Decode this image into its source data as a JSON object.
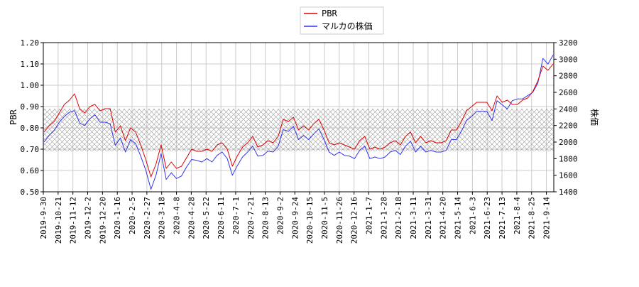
{
  "chart_data": {
    "type": "line",
    "title": "",
    "xlabel": "",
    "ylabel": "PBR",
    "y2label": "株価",
    "ylim": [
      0.5,
      1.2
    ],
    "y2lim": [
      1400,
      3200
    ],
    "yticks": [
      "0.50",
      "0.60",
      "0.70",
      "0.80",
      "0.90",
      "1.00",
      "1.10",
      "1.20"
    ],
    "y2ticks": [
      "1400",
      "1600",
      "1800",
      "2000",
      "2200",
      "2400",
      "2600",
      "2800",
      "3000",
      "3200"
    ],
    "xticks": [
      "2019-9-30",
      "2019-10-21",
      "2019-11-12",
      "2019-12-2",
      "2019-12-20",
      "2020-1-16",
      "2020-2-5",
      "2020-2-27",
      "2020-3-18",
      "2020-4-8",
      "2020-4-28",
      "2020-5-22",
      "2020-6-11",
      "2020-7-1",
      "2020-7-21",
      "2020-8-13",
      "2020-9-2",
      "2020-9-24",
      "2020-10-15",
      "2020-11-5",
      "2020-11-26",
      "2020-12-16",
      "2021-1-7",
      "2021-1-28",
      "2021-2-18",
      "2021-3-11",
      "2021-3-31",
      "2021-4-20",
      "2021-5-14",
      "2021-6-3",
      "2021-6-23",
      "2021-7-13",
      "2021-8-4",
      "2021-8-25",
      "2021-9-14"
    ],
    "grid": true,
    "legend_position": "top-center",
    "band": {
      "ymin": 0.69,
      "ymax": 0.89,
      "pattern": "cross-hatch"
    },
    "colors": {
      "PBR": "#dd0000",
      "stock": "#3333ee"
    },
    "series": [
      {
        "name": "PBR",
        "axis": "left",
        "values": [
          0.78,
          0.81,
          0.83,
          0.87,
          0.91,
          0.93,
          0.96,
          0.89,
          0.87,
          0.9,
          0.91,
          0.88,
          0.89,
          0.89,
          0.78,
          0.81,
          0.74,
          0.8,
          0.78,
          0.72,
          0.65,
          0.57,
          0.63,
          0.72,
          0.61,
          0.64,
          0.61,
          0.62,
          0.66,
          0.7,
          0.69,
          0.69,
          0.7,
          0.69,
          0.72,
          0.73,
          0.7,
          0.62,
          0.67,
          0.71,
          0.73,
          0.76,
          0.71,
          0.72,
          0.74,
          0.73,
          0.76,
          0.84,
          0.83,
          0.85,
          0.79,
          0.81,
          0.79,
          0.82,
          0.84,
          0.79,
          0.73,
          0.72,
          0.73,
          0.72,
          0.71,
          0.7,
          0.74,
          0.76,
          0.7,
          0.71,
          0.7,
          0.71,
          0.73,
          0.74,
          0.72,
          0.76,
          0.78,
          0.73,
          0.76,
          0.73,
          0.74,
          0.73,
          0.73,
          0.74,
          0.79,
          0.79,
          0.83,
          0.88,
          0.9,
          0.92,
          0.92,
          0.92,
          0.88,
          0.95,
          0.92,
          0.93,
          0.91,
          0.91,
          0.93,
          0.94,
          0.97,
          1.02,
          1.09,
          1.07,
          1.1
        ]
      },
      {
        "name": "マルカの株価",
        "axis": "right",
        "values": [
          2000,
          2080,
          2140,
          2240,
          2310,
          2360,
          2380,
          2230,
          2200,
          2280,
          2330,
          2240,
          2240,
          2220,
          1960,
          2050,
          1880,
          2030,
          1980,
          1830,
          1660,
          1430,
          1600,
          1860,
          1550,
          1630,
          1560,
          1590,
          1700,
          1790,
          1780,
          1760,
          1800,
          1760,
          1840,
          1880,
          1800,
          1600,
          1720,
          1820,
          1880,
          1950,
          1830,
          1840,
          1890,
          1880,
          1950,
          2150,
          2130,
          2190,
          2030,
          2080,
          2030,
          2100,
          2160,
          2030,
          1880,
          1840,
          1880,
          1840,
          1830,
          1800,
          1900,
          1950,
          1800,
          1820,
          1800,
          1820,
          1880,
          1900,
          1850,
          1950,
          2010,
          1880,
          1950,
          1880,
          1900,
          1880,
          1880,
          1900,
          2030,
          2030,
          2130,
          2260,
          2310,
          2370,
          2370,
          2370,
          2260,
          2500,
          2450,
          2400,
          2500,
          2520,
          2520,
          2560,
          2600,
          2710,
          3010,
          2940,
          3050
        ]
      }
    ]
  }
}
